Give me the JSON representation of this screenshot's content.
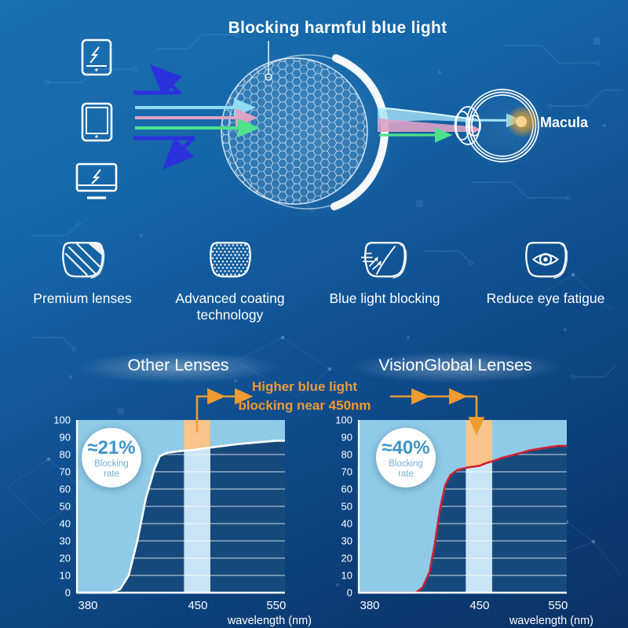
{
  "hero": {
    "title": "Blocking harmful blue light",
    "macula_label": "Macula",
    "device_icons": [
      "smartphone-icon",
      "tablet-icon",
      "monitor-icon"
    ],
    "light_rays": [
      "reflected-blue-ray",
      "cyan-ray",
      "pink-ray",
      "green-ray"
    ]
  },
  "features": [
    {
      "icon": "striped-lens-icon",
      "line1": "Premium lenses",
      "line2": ""
    },
    {
      "icon": "coated-lens-icon",
      "line1": "Advanced coating",
      "line2": "technology"
    },
    {
      "icon": "deflect-lens-icon",
      "line1": "Blue light blocking",
      "line2": ""
    },
    {
      "icon": "eye-lens-icon",
      "line1": "Reduce eye fatigue",
      "line2": ""
    }
  ],
  "comparison": {
    "annotation_line1": "Higher blue light",
    "annotation_line2": "blocking near 450nm"
  },
  "colors": {
    "accent_orange": "#EE9B31",
    "band_orange": "#F8C489",
    "area_blue": "#8FCBE9",
    "band_blue": "#C9E4F6",
    "plot_bg": "#174A7C",
    "curve_white": "#FFFFFF",
    "curve_red": "#D1202F",
    "badge_text_blue": "#3E93C8"
  },
  "chart_data": [
    {
      "type": "area",
      "title": "Other Lenses",
      "xlabel": "wavelength (nm)",
      "x_ticks": [
        380,
        450,
        550
      ],
      "y_ticks": [
        0,
        10,
        20,
        30,
        40,
        50,
        60,
        70,
        80,
        90,
        100
      ],
      "ylim": [
        0,
        100
      ],
      "grid": "horizontal",
      "legend": "none",
      "curve_color": "#FFFFFF",
      "badge": {
        "value": "≈21%",
        "line1": "Blocking",
        "line2": "rate"
      },
      "blocking_rate_percent": 21,
      "highlight_band_nm": [
        442,
        466
      ],
      "x_map_fractions": [
        [
          380,
          0.0
        ],
        [
          450,
          0.581
        ],
        [
          550,
          0.958
        ]
      ],
      "series": [
        {
          "name": "transmission curve",
          "points_nm_percent": [
            [
              380,
              0
            ],
            [
              400,
              0
            ],
            [
              405,
              2
            ],
            [
              410,
              10
            ],
            [
              415,
              30
            ],
            [
              420,
              55
            ],
            [
              425,
              72
            ],
            [
              428,
              79
            ],
            [
              432,
              81
            ],
            [
              440,
              82
            ],
            [
              450,
              83
            ],
            [
              466,
              84
            ],
            [
              500,
              86
            ],
            [
              550,
              88
            ]
          ]
        }
      ]
    },
    {
      "type": "area",
      "title": "VisionGlobal Lenses",
      "xlabel": "wavelength (nm)",
      "x_ticks": [
        380,
        450,
        550
      ],
      "y_ticks": [
        0,
        10,
        20,
        30,
        40,
        50,
        60,
        70,
        80,
        90,
        100
      ],
      "ylim": [
        0,
        100
      ],
      "grid": "horizontal",
      "legend": "none",
      "curve_color": "#D1202F",
      "badge": {
        "value": "≈40%",
        "line1": "Blocking",
        "line2": "rate"
      },
      "blocking_rate_percent": 40,
      "highlight_band_nm": [
        442,
        466
      ],
      "x_map_fractions": [
        [
          380,
          0.0
        ],
        [
          450,
          0.581
        ],
        [
          550,
          0.958
        ]
      ],
      "series": [
        {
          "name": "transmission curve",
          "points_nm_percent": [
            [
              380,
              0
            ],
            [
              413,
              0
            ],
            [
              417,
              3
            ],
            [
              421,
              12
            ],
            [
              424,
              28
            ],
            [
              427,
              48
            ],
            [
              430,
              62
            ],
            [
              433,
              68
            ],
            [
              437,
              71
            ],
            [
              443,
              72.5
            ],
            [
              450,
              73.5
            ],
            [
              458,
              75
            ],
            [
              466,
              76
            ],
            [
              478,
              78
            ],
            [
              495,
              80
            ],
            [
              515,
              82.5
            ],
            [
              535,
              84
            ],
            [
              550,
              85
            ]
          ]
        }
      ]
    }
  ]
}
